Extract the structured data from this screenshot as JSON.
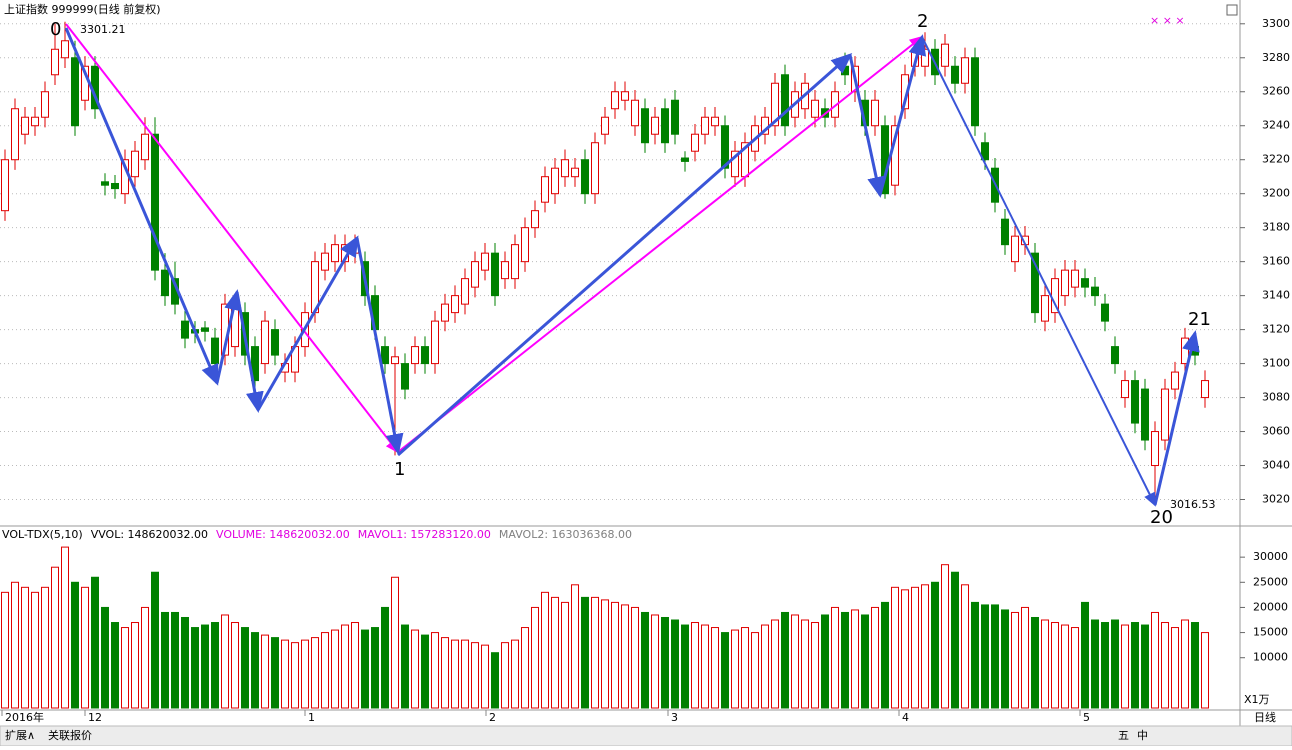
{
  "chart_data": [
    {
      "type": "candlestick",
      "title": "上证指数 999999(日线 前复权)",
      "up_color": "#e00000",
      "down_color": "#008000",
      "ylim": [
        3005,
        3314
      ],
      "yticks": [
        3020,
        3040,
        3060,
        3080,
        3100,
        3120,
        3140,
        3160,
        3180,
        3200,
        3220,
        3240,
        3260,
        3280,
        3300
      ],
      "grid": true,
      "open": [
        3190,
        3220,
        3235,
        3240,
        3245,
        3270,
        3280,
        3280,
        3255,
        3275,
        3207,
        3206,
        3200,
        3210,
        3220,
        3235,
        3155,
        3150,
        3125,
        3120,
        3121,
        3115,
        3105,
        3110,
        3130,
        3110,
        3100,
        3120,
        3095,
        3095,
        3110,
        3130,
        3155,
        3160,
        3160,
        3165,
        3160,
        3140,
        3110,
        3100,
        3100,
        3100,
        3110,
        3100,
        3125,
        3130,
        3135,
        3145,
        3155,
        3165,
        3150,
        3150,
        3160,
        3180,
        3195,
        3200,
        3210,
        3210,
        3220,
        3200,
        3235,
        3250,
        3255,
        3240,
        3250,
        3235,
        3250,
        3255,
        3221,
        3225,
        3235,
        3240,
        3240,
        3210,
        3210,
        3225,
        3235,
        3240,
        3270,
        3245,
        3250,
        3245,
        3250,
        3245,
        3275,
        3260,
        3255,
        3240,
        3240,
        3205,
        3250,
        3275,
        3275,
        3285,
        3275,
        3275,
        3265,
        3280,
        3230,
        3215,
        3185,
        3160,
        3170,
        3165,
        3125,
        3130,
        3140,
        3145,
        3150,
        3145,
        3135,
        3110,
        3080,
        3090,
        3085,
        3040,
        3055,
        3085,
        3100,
        3110,
        3080
      ],
      "close": [
        3220,
        3250,
        3245,
        3245,
        3260,
        3285,
        3290,
        3240,
        3275,
        3250,
        3205,
        3203,
        3220,
        3225,
        3235,
        3155,
        3140,
        3135,
        3115,
        3118,
        3119,
        3100,
        3135,
        3135,
        3105,
        3090,
        3125,
        3105,
        3100,
        3110,
        3130,
        3160,
        3165,
        3170,
        3170,
        3170,
        3140,
        3120,
        3100,
        3104,
        3085,
        3110,
        3100,
        3125,
        3135,
        3140,
        3150,
        3160,
        3165,
        3140,
        3160,
        3170,
        3180,
        3190,
        3210,
        3215,
        3220,
        3215,
        3200,
        3230,
        3245,
        3260,
        3260,
        3255,
        3230,
        3245,
        3230,
        3235,
        3219,
        3235,
        3245,
        3245,
        3215,
        3225,
        3230,
        3240,
        3245,
        3265,
        3240,
        3260,
        3265,
        3255,
        3245,
        3260,
        3270,
        3275,
        3240,
        3255,
        3200,
        3240,
        3270,
        3285,
        3285,
        3270,
        3288,
        3265,
        3280,
        3240,
        3220,
        3195,
        3170,
        3175,
        3175,
        3130,
        3140,
        3150,
        3155,
        3155,
        3145,
        3140,
        3125,
        3100,
        3090,
        3065,
        3055,
        3060,
        3085,
        3095,
        3115,
        3105,
        3090
      ],
      "high": [
        3226,
        3256,
        3251,
        3251,
        3266,
        3300,
        3301.21,
        3290,
        3281,
        3281,
        3212,
        3211,
        3226,
        3231,
        3245,
        3245,
        3165,
        3160,
        3131,
        3125,
        3125,
        3121,
        3141,
        3141,
        3136,
        3116,
        3131,
        3126,
        3106,
        3116,
        3136,
        3166,
        3171,
        3176,
        3176,
        3176,
        3166,
        3146,
        3116,
        3110,
        3106,
        3116,
        3116,
        3131,
        3141,
        3146,
        3156,
        3166,
        3171,
        3171,
        3166,
        3176,
        3186,
        3196,
        3216,
        3221,
        3226,
        3221,
        3226,
        3236,
        3251,
        3266,
        3266,
        3261,
        3256,
        3251,
        3256,
        3261,
        3225,
        3241,
        3251,
        3251,
        3246,
        3231,
        3236,
        3246,
        3251,
        3271,
        3276,
        3266,
        3271,
        3261,
        3256,
        3266,
        3283,
        3281,
        3261,
        3261,
        3246,
        3246,
        3276,
        3291,
        3295,
        3291,
        3294,
        3281,
        3286,
        3286,
        3236,
        3221,
        3191,
        3181,
        3181,
        3171,
        3146,
        3156,
        3161,
        3161,
        3156,
        3151,
        3141,
        3116,
        3096,
        3096,
        3091,
        3066,
        3091,
        3101,
        3121,
        3116,
        3096
      ],
      "low": [
        3184,
        3214,
        3229,
        3234,
        3239,
        3264,
        3274,
        3234,
        3249,
        3244,
        3199,
        3197,
        3194,
        3204,
        3214,
        3149,
        3134,
        3129,
        3109,
        3112,
        3113,
        3094,
        3099,
        3104,
        3099,
        3075,
        3094,
        3099,
        3089,
        3089,
        3104,
        3124,
        3149,
        3154,
        3154,
        3159,
        3134,
        3114,
        3094,
        3046,
        3079,
        3094,
        3094,
        3094,
        3119,
        3124,
        3129,
        3139,
        3149,
        3134,
        3144,
        3144,
        3154,
        3174,
        3189,
        3194,
        3204,
        3204,
        3194,
        3194,
        3229,
        3244,
        3249,
        3234,
        3224,
        3229,
        3224,
        3229,
        3213,
        3219,
        3229,
        3234,
        3209,
        3204,
        3204,
        3219,
        3229,
        3234,
        3234,
        3239,
        3244,
        3239,
        3239,
        3239,
        3264,
        3254,
        3234,
        3234,
        3197,
        3199,
        3244,
        3269,
        3269,
        3264,
        3269,
        3259,
        3259,
        3234,
        3214,
        3189,
        3164,
        3154,
        3164,
        3124,
        3119,
        3124,
        3134,
        3139,
        3139,
        3134,
        3119,
        3094,
        3074,
        3059,
        3049,
        3016.53,
        3049,
        3079,
        3094,
        3099,
        3074
      ],
      "x_labels": [
        "2016年",
        "12",
        "1",
        "2",
        "3",
        "4",
        "5",
        "日线"
      ],
      "annotations": [
        "0",
        "3301.21",
        "1",
        "2",
        "20",
        "3016.53",
        "21"
      ]
    },
    {
      "type": "bar",
      "legend": [
        {
          "text": "VOL-TDX(5,10)",
          "color": "#000000"
        },
        {
          "text": "VVOL: 148620032.00",
          "color": "#000000"
        },
        {
          "text": "VOLUME: 148620032.00",
          "color": "#e000e0"
        },
        {
          "text": "MAVOL1: 157283120.00",
          "color": "#e000e0"
        },
        {
          "text": "MAVOL2: 163036368.00",
          "color": "#808080"
        }
      ],
      "unit": "X1万",
      "ylim": [
        0,
        35400
      ],
      "yticks": [
        10000,
        15000,
        20000,
        25000,
        30000
      ],
      "values": [
        23000,
        25000,
        24000,
        23000,
        24000,
        28000,
        32000,
        25000,
        24000,
        26000,
        20000,
        17000,
        16000,
        17000,
        20000,
        27000,
        19000,
        19000,
        18000,
        16000,
        16500,
        17000,
        18500,
        17000,
        16000,
        15000,
        14500,
        14000,
        13500,
        13000,
        13500,
        14000,
        15000,
        15500,
        16500,
        17000,
        15500,
        16000,
        20000,
        26000,
        16500,
        15500,
        14500,
        15000,
        14000,
        13500,
        13500,
        13000,
        12500,
        11000,
        13000,
        13500,
        16000,
        20000,
        23000,
        22000,
        21000,
        24500,
        22000,
        22000,
        21500,
        21000,
        20500,
        20000,
        19000,
        18500,
        18000,
        17500,
        16500,
        17000,
        16500,
        16000,
        15000,
        15500,
        16000,
        15000,
        16500,
        17500,
        19000,
        18500,
        17500,
        17000,
        18500,
        20000,
        19000,
        19500,
        18500,
        20000,
        21000,
        24000,
        23500,
        24000,
        24500,
        25000,
        28500,
        27000,
        24500,
        21000,
        20500,
        20500,
        19500,
        19000,
        20000,
        18000,
        17500,
        17000,
        16500,
        16000,
        21000,
        17500,
        17000,
        17500,
        16500,
        17000,
        16500,
        19000,
        17000,
        16000,
        17500,
        17000,
        15000
      ]
    }
  ],
  "toolbar": [
    "扩展∧",
    "关联报价",
    "五",
    "中"
  ]
}
